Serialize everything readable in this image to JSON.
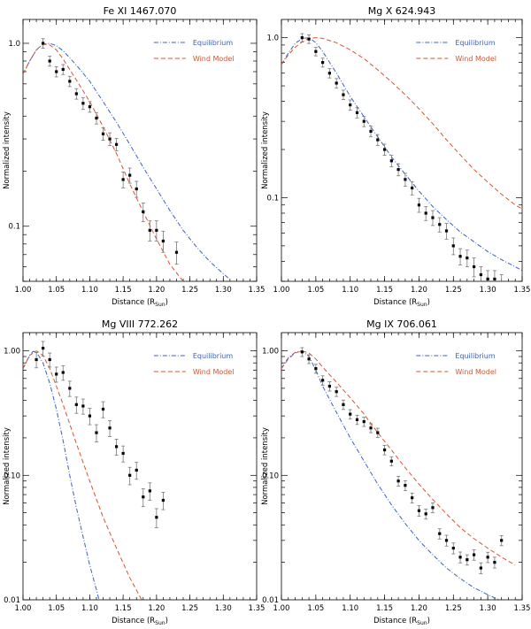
{
  "figure": {
    "xlabel_prefix": "Distance (R",
    "xlabel_sub": "Sun",
    "xlabel_suffix": ")",
    "ylabel": "Normalized intensity",
    "legend": [
      {
        "name": "Equilibrium",
        "color": "#3a5fc8",
        "dash": "dashdot"
      },
      {
        "name": "Wind Model",
        "color": "#d9542e",
        "dash": "dash"
      }
    ]
  },
  "chart_data": [
    {
      "type": "line",
      "title": "Fe XI 1467.070",
      "xlim": [
        1.0,
        1.35
      ],
      "ylim": [
        0.05,
        1.35
      ],
      "yscale": "log",
      "xticks": [
        1.0,
        1.05,
        1.1,
        1.15,
        1.2,
        1.25,
        1.3,
        1.35
      ],
      "xtick_labels": [
        "1.00",
        "1.05",
        "1.10",
        "1.15",
        "1.20",
        "1.25",
        "1.30",
        "1.35"
      ],
      "yticks": [
        1.0,
        0.1
      ],
      "ytick_labels": [
        "1.0",
        "0.1"
      ],
      "series": [
        {
          "name": "Equilibrium",
          "color": "#3a5fc8",
          "dash": "dashdot",
          "x": [
            1.0,
            1.01,
            1.02,
            1.03,
            1.04,
            1.05,
            1.06,
            1.08,
            1.1,
            1.12,
            1.14,
            1.16,
            1.18,
            1.2,
            1.22,
            1.24,
            1.26,
            1.28,
            1.3,
            1.32,
            1.33
          ],
          "y": [
            0.68,
            0.8,
            0.92,
            0.99,
            1.0,
            0.97,
            0.91,
            0.76,
            0.62,
            0.48,
            0.37,
            0.28,
            0.21,
            0.16,
            0.122,
            0.095,
            0.077,
            0.064,
            0.055,
            0.0475,
            0.045
          ]
        },
        {
          "name": "Wind Model",
          "color": "#d9542e",
          "dash": "dash",
          "x": [
            1.0,
            1.01,
            1.02,
            1.03,
            1.04,
            1.05,
            1.06,
            1.08,
            1.1,
            1.12,
            1.14,
            1.16,
            1.18,
            1.2,
            1.22,
            1.24,
            1.25
          ],
          "y": [
            0.68,
            0.8,
            0.92,
            0.99,
            0.98,
            0.92,
            0.82,
            0.63,
            0.48,
            0.35,
            0.25,
            0.17,
            0.12,
            0.085,
            0.062,
            0.05,
            0.045
          ]
        }
      ],
      "observations": {
        "x": [
          1.03,
          1.04,
          1.05,
          1.06,
          1.07,
          1.08,
          1.09,
          1.1,
          1.11,
          1.12,
          1.13,
          1.14,
          1.15,
          1.16,
          1.17,
          1.18,
          1.19,
          1.2,
          1.21,
          1.23
        ],
        "y": [
          1.0,
          0.8,
          0.7,
          0.72,
          0.62,
          0.53,
          0.47,
          0.45,
          0.39,
          0.32,
          0.3,
          0.28,
          0.18,
          0.19,
          0.16,
          0.12,
          0.095,
          0.095,
          0.083,
          0.072
        ],
        "err": [
          0.06,
          0.05,
          0.045,
          0.045,
          0.04,
          0.035,
          0.035,
          0.03,
          0.028,
          0.025,
          0.024,
          0.022,
          0.018,
          0.018,
          0.016,
          0.014,
          0.012,
          0.012,
          0.011,
          0.01
        ]
      }
    },
    {
      "type": "line",
      "title": "Mg X 624.943",
      "xlim": [
        1.0,
        1.35
      ],
      "ylim": [
        0.03,
        1.3
      ],
      "yscale": "log",
      "xticks": [
        1.0,
        1.05,
        1.1,
        1.15,
        1.2,
        1.25,
        1.3,
        1.35
      ],
      "xtick_labels": [
        "1.00",
        "1.05",
        "1.10",
        "1.15",
        "1.20",
        "1.25",
        "1.30",
        "1.35"
      ],
      "yticks": [
        1.0,
        0.1
      ],
      "ytick_labels": [
        "1.0",
        "0.1"
      ],
      "series": [
        {
          "name": "Equilibrium",
          "color": "#3a5fc8",
          "dash": "dashdot",
          "x": [
            1.0,
            1.01,
            1.02,
            1.03,
            1.04,
            1.05,
            1.06,
            1.08,
            1.1,
            1.12,
            1.14,
            1.16,
            1.18,
            1.2,
            1.22,
            1.24,
            1.26,
            1.28,
            1.3,
            1.32,
            1.34,
            1.35
          ],
          "y": [
            0.68,
            0.8,
            0.92,
            0.99,
            1.0,
            0.93,
            0.82,
            0.6,
            0.43,
            0.32,
            0.24,
            0.18,
            0.14,
            0.11,
            0.088,
            0.073,
            0.061,
            0.053,
            0.046,
            0.041,
            0.037,
            0.035
          ]
        },
        {
          "name": "Wind Model",
          "color": "#d9542e",
          "dash": "dash",
          "x": [
            1.0,
            1.01,
            1.02,
            1.03,
            1.04,
            1.05,
            1.06,
            1.08,
            1.1,
            1.12,
            1.14,
            1.16,
            1.18,
            1.2,
            1.22,
            1.24,
            1.26,
            1.28,
            1.3,
            1.32,
            1.34,
            1.35
          ],
          "y": [
            0.68,
            0.78,
            0.87,
            0.94,
            0.99,
            1.0,
            0.99,
            0.93,
            0.84,
            0.74,
            0.63,
            0.53,
            0.44,
            0.36,
            0.29,
            0.23,
            0.185,
            0.15,
            0.125,
            0.105,
            0.09,
            0.085
          ]
        }
      ],
      "observations": {
        "x": [
          1.03,
          1.04,
          1.05,
          1.06,
          1.07,
          1.08,
          1.09,
          1.1,
          1.11,
          1.12,
          1.13,
          1.14,
          1.15,
          1.16,
          1.17,
          1.18,
          1.19,
          1.2,
          1.21,
          1.22,
          1.23,
          1.24,
          1.25,
          1.26,
          1.27,
          1.28,
          1.29,
          1.3,
          1.31,
          1.32
        ],
        "y": [
          1.0,
          0.98,
          0.82,
          0.7,
          0.6,
          0.52,
          0.44,
          0.38,
          0.34,
          0.3,
          0.26,
          0.23,
          0.2,
          0.17,
          0.15,
          0.13,
          0.115,
          0.09,
          0.08,
          0.075,
          0.068,
          0.062,
          0.05,
          0.043,
          0.042,
          0.037,
          0.033,
          0.031,
          0.031,
          0.029
        ],
        "err": [
          0.06,
          0.06,
          0.05,
          0.045,
          0.04,
          0.035,
          0.03,
          0.028,
          0.025,
          0.022,
          0.02,
          0.018,
          0.016,
          0.014,
          0.013,
          0.012,
          0.011,
          0.009,
          0.008,
          0.008,
          0.007,
          0.007,
          0.006,
          0.005,
          0.005,
          0.005,
          0.004,
          0.004,
          0.004,
          0.004
        ]
      }
    },
    {
      "type": "line",
      "title": "Mg VIII 772.262",
      "xlim": [
        1.0,
        1.35
      ],
      "ylim": [
        0.01,
        1.4
      ],
      "yscale": "log",
      "xticks": [
        1.0,
        1.05,
        1.1,
        1.15,
        1.2,
        1.25,
        1.3,
        1.35
      ],
      "xtick_labels": [
        "1.00",
        "1.05",
        "1.10",
        "1.15",
        "1.20",
        "1.25",
        "1.30",
        "1.35"
      ],
      "yticks": [
        1.0,
        0.1,
        0.01
      ],
      "ytick_labels": [
        "1.00",
        "0.10",
        "0.01"
      ],
      "series": [
        {
          "name": "Equilibrium",
          "color": "#3a5fc8",
          "dash": "dashdot",
          "x": [
            1.0,
            1.01,
            1.015,
            1.02,
            1.03,
            1.04,
            1.05,
            1.06,
            1.07,
            1.08,
            1.09,
            1.1,
            1.11,
            1.115
          ],
          "y": [
            0.72,
            0.92,
            0.99,
            0.98,
            0.8,
            0.55,
            0.34,
            0.19,
            0.1,
            0.055,
            0.032,
            0.019,
            0.012,
            0.0095
          ]
        },
        {
          "name": "Wind Model",
          "color": "#d9542e",
          "dash": "dash",
          "x": [
            1.0,
            1.01,
            1.02,
            1.03,
            1.04,
            1.05,
            1.06,
            1.08,
            1.1,
            1.12,
            1.14,
            1.16,
            1.18
          ],
          "y": [
            0.72,
            0.92,
            1.0,
            0.92,
            0.72,
            0.52,
            0.37,
            0.18,
            0.09,
            0.046,
            0.026,
            0.015,
            0.0095
          ]
        }
      ],
      "observations": {
        "x": [
          1.02,
          1.03,
          1.04,
          1.05,
          1.06,
          1.07,
          1.08,
          1.09,
          1.1,
          1.11,
          1.12,
          1.13,
          1.14,
          1.15,
          1.16,
          1.17,
          1.18,
          1.19,
          1.2,
          1.21
        ],
        "y": [
          0.85,
          1.05,
          0.85,
          0.65,
          0.67,
          0.5,
          0.37,
          0.36,
          0.3,
          0.22,
          0.34,
          0.24,
          0.17,
          0.15,
          0.1,
          0.11,
          0.067,
          0.075,
          0.046,
          0.063
        ],
        "err": [
          0.12,
          0.14,
          0.11,
          0.09,
          0.09,
          0.07,
          0.055,
          0.05,
          0.045,
          0.035,
          0.05,
          0.035,
          0.025,
          0.022,
          0.016,
          0.017,
          0.011,
          0.012,
          0.008,
          0.01
        ]
      }
    },
    {
      "type": "line",
      "title": "Mg IX 706.061",
      "xlim": [
        1.0,
        1.35
      ],
      "ylim": [
        0.01,
        1.4
      ],
      "yscale": "log",
      "xticks": [
        1.0,
        1.05,
        1.1,
        1.15,
        1.2,
        1.25,
        1.3,
        1.35
      ],
      "xtick_labels": [
        "1.00",
        "1.05",
        "1.10",
        "1.15",
        "1.20",
        "1.25",
        "1.30",
        "1.35"
      ],
      "yticks": [
        1.0,
        0.1,
        0.01
      ],
      "ytick_labels": [
        "1.00",
        "0.10",
        "0.01"
      ],
      "series": [
        {
          "name": "Equilibrium",
          "color": "#3a5fc8",
          "dash": "dashdot",
          "x": [
            1.0,
            1.01,
            1.02,
            1.03,
            1.04,
            1.05,
            1.06,
            1.08,
            1.1,
            1.12,
            1.14,
            1.16,
            1.18,
            1.2,
            1.22,
            1.24,
            1.26,
            1.28,
            1.3,
            1.32,
            1.33
          ],
          "y": [
            0.72,
            0.88,
            0.97,
            1.0,
            0.9,
            0.7,
            0.52,
            0.32,
            0.2,
            0.13,
            0.085,
            0.058,
            0.041,
            0.03,
            0.023,
            0.018,
            0.0148,
            0.0125,
            0.011,
            0.0098,
            0.0093
          ]
        },
        {
          "name": "Wind Model",
          "color": "#d9542e",
          "dash": "dash",
          "x": [
            1.0,
            1.01,
            1.02,
            1.03,
            1.04,
            1.05,
            1.06,
            1.08,
            1.1,
            1.12,
            1.14,
            1.16,
            1.18,
            1.2,
            1.22,
            1.24,
            1.26,
            1.28,
            1.3,
            1.32,
            1.34
          ],
          "y": [
            0.72,
            0.86,
            0.96,
            1.0,
            0.96,
            0.86,
            0.74,
            0.56,
            0.42,
            0.31,
            0.22,
            0.16,
            0.115,
            0.085,
            0.064,
            0.049,
            0.038,
            0.031,
            0.026,
            0.022,
            0.019
          ]
        }
      ],
      "observations": {
        "x": [
          1.03,
          1.04,
          1.05,
          1.06,
          1.07,
          1.08,
          1.09,
          1.1,
          1.11,
          1.12,
          1.13,
          1.14,
          1.15,
          1.16,
          1.17,
          1.18,
          1.19,
          1.2,
          1.21,
          1.22,
          1.23,
          1.24,
          1.25,
          1.26,
          1.27,
          1.28,
          1.29,
          1.3,
          1.31,
          1.32
        ],
        "y": [
          0.98,
          0.86,
          0.72,
          0.58,
          0.52,
          0.47,
          0.37,
          0.31,
          0.28,
          0.27,
          0.24,
          0.22,
          0.16,
          0.13,
          0.09,
          0.083,
          0.066,
          0.052,
          0.049,
          0.055,
          0.034,
          0.03,
          0.026,
          0.022,
          0.021,
          0.023,
          0.018,
          0.022,
          0.02,
          0.03
        ],
        "err": [
          0.08,
          0.07,
          0.06,
          0.05,
          0.045,
          0.04,
          0.032,
          0.027,
          0.024,
          0.023,
          0.02,
          0.019,
          0.014,
          0.011,
          0.008,
          0.0075,
          0.006,
          0.005,
          0.0045,
          0.005,
          0.0032,
          0.003,
          0.0026,
          0.0022,
          0.002,
          0.0022,
          0.0018,
          0.0021,
          0.002,
          0.0028
        ]
      }
    }
  ]
}
